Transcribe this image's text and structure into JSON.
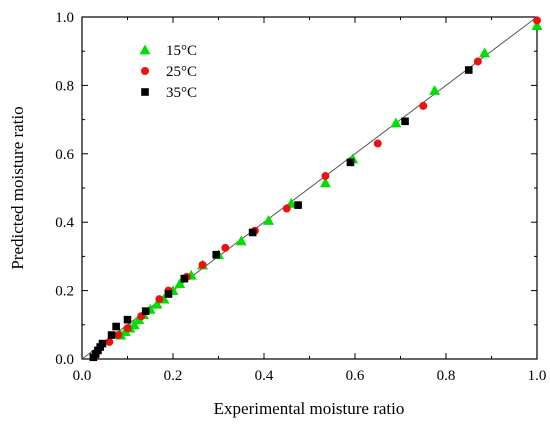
{
  "chart_data": {
    "type": "scatter",
    "title": "",
    "xlabel": "Experimental moisture ratio",
    "ylabel": "Predicted moisture ratio",
    "xlim": [
      0.0,
      1.0
    ],
    "ylim": [
      0.0,
      1.0
    ],
    "xticks": [
      "0.0",
      "0.2",
      "0.4",
      "0.6",
      "0.8",
      "1.0"
    ],
    "yticks": [
      "0.0",
      "0.2",
      "0.4",
      "0.6",
      "0.8",
      "1.0"
    ],
    "grid": false,
    "legend_position": "top-left",
    "reference_line": {
      "from": [
        0.0,
        0.0
      ],
      "to": [
        1.0,
        1.0
      ]
    },
    "series": [
      {
        "name": "15°C",
        "marker": "triangle",
        "color": "#00e000",
        "points": [
          [
            0.085,
            0.07
          ],
          [
            0.095,
            0.08
          ],
          [
            0.105,
            0.09
          ],
          [
            0.115,
            0.1
          ],
          [
            0.125,
            0.115
          ],
          [
            0.135,
            0.13
          ],
          [
            0.15,
            0.145
          ],
          [
            0.165,
            0.16
          ],
          [
            0.18,
            0.175
          ],
          [
            0.2,
            0.2
          ],
          [
            0.215,
            0.22
          ],
          [
            0.24,
            0.245
          ],
          [
            0.265,
            0.275
          ],
          [
            0.3,
            0.305
          ],
          [
            0.35,
            0.345
          ],
          [
            0.41,
            0.405
          ],
          [
            0.46,
            0.455
          ],
          [
            0.535,
            0.515
          ],
          [
            0.595,
            0.585
          ],
          [
            0.69,
            0.69
          ],
          [
            0.775,
            0.785
          ],
          [
            0.885,
            0.895
          ],
          [
            1.0,
            0.975
          ]
        ]
      },
      {
        "name": "25°C",
        "marker": "circle",
        "color": "#ee1111",
        "points": [
          [
            0.03,
            0.01
          ],
          [
            0.06,
            0.05
          ],
          [
            0.08,
            0.07
          ],
          [
            0.1,
            0.09
          ],
          [
            0.13,
            0.125
          ],
          [
            0.17,
            0.175
          ],
          [
            0.19,
            0.2
          ],
          [
            0.23,
            0.24
          ],
          [
            0.265,
            0.275
          ],
          [
            0.315,
            0.325
          ],
          [
            0.38,
            0.375
          ],
          [
            0.45,
            0.44
          ],
          [
            0.535,
            0.535
          ],
          [
            0.65,
            0.63
          ],
          [
            0.75,
            0.74
          ],
          [
            0.87,
            0.87
          ],
          [
            1.0,
            0.99
          ]
        ]
      },
      {
        "name": "35°C",
        "marker": "square",
        "color": "#000000",
        "points": [
          [
            0.025,
            0.005
          ],
          [
            0.03,
            0.015
          ],
          [
            0.035,
            0.025
          ],
          [
            0.04,
            0.035
          ],
          [
            0.045,
            0.045
          ],
          [
            0.065,
            0.07
          ],
          [
            0.075,
            0.095
          ],
          [
            0.1,
            0.115
          ],
          [
            0.14,
            0.14
          ],
          [
            0.19,
            0.19
          ],
          [
            0.225,
            0.235
          ],
          [
            0.295,
            0.305
          ],
          [
            0.375,
            0.37
          ],
          [
            0.475,
            0.45
          ],
          [
            0.59,
            0.575
          ],
          [
            0.71,
            0.695
          ],
          [
            0.85,
            0.845
          ]
        ]
      }
    ]
  }
}
